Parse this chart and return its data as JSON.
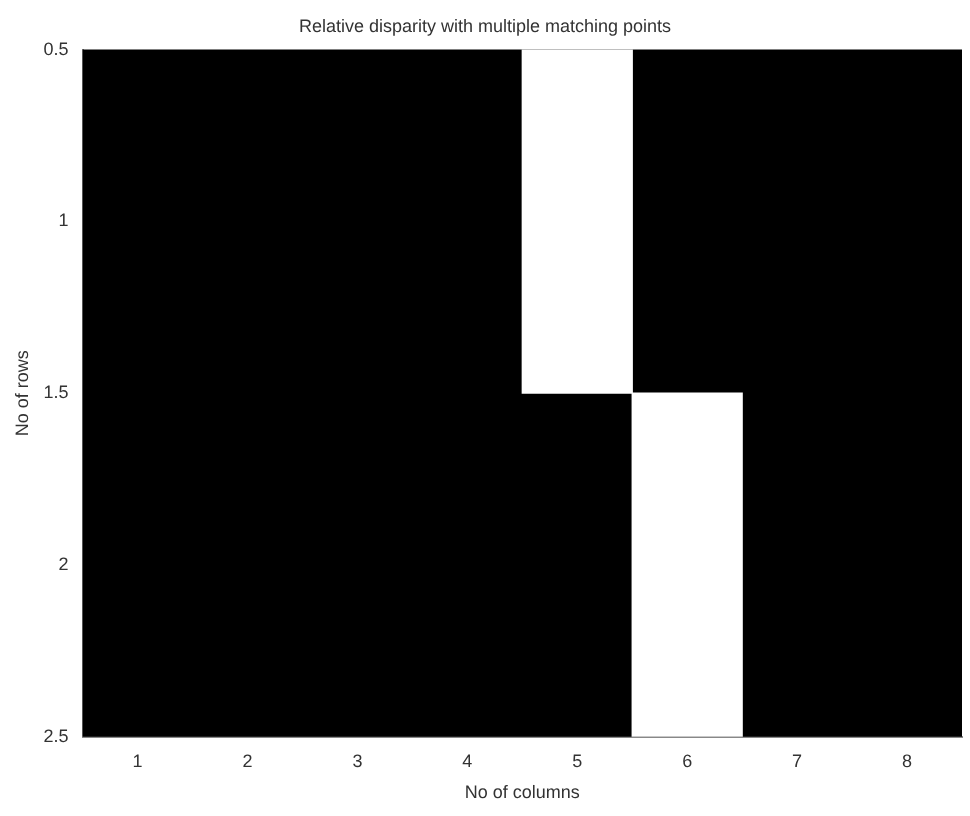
{
  "chart_data": {
    "type": "bar",
    "title": "Relative disparity with multiple matching points",
    "xlabel": "No of columns",
    "ylabel": "No of rows",
    "categories": [
      "1",
      "2",
      "3",
      "4",
      "5",
      "6",
      "7",
      "8"
    ],
    "values": [
      null,
      null,
      null,
      null,
      1,
      1,
      null,
      null
    ],
    "base": [
      null,
      null,
      null,
      null,
      0.5,
      1.5,
      null,
      null
    ],
    "color": "#ffffff",
    "ylim": [
      2.5,
      0.5
    ],
    "yticks": [
      0.5,
      1,
      1.5,
      2,
      2.5
    ],
    "grid": false,
    "legend": false
  }
}
